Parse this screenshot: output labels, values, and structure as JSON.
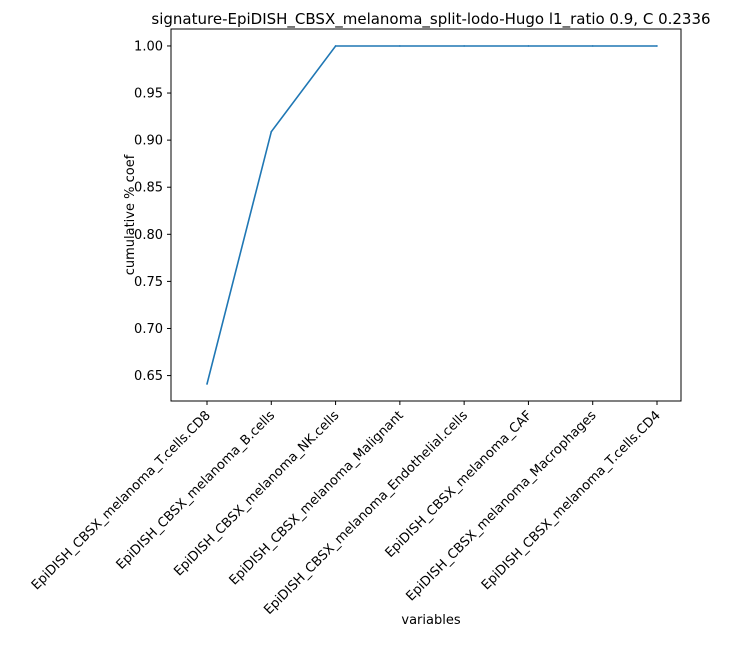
{
  "chart_data": {
    "type": "line",
    "title": "signature-EpiDISH_CBSX_melanoma_split-lodo-Hugo l1_ratio 0.9, C 0.2336",
    "xlabel": "variables",
    "ylabel": "cumulative % coef",
    "categories": [
      "EpiDISH_CBSX_melanoma_T.cells.CD8",
      "EpiDISH_CBSX_melanoma_B.cells",
      "EpiDISH_CBSX_melanoma_NK.cells",
      "EpiDISH_CBSX_melanoma_Malignant",
      "EpiDISH_CBSX_melanoma_Endothelial.cells",
      "EpiDISH_CBSX_melanoma_CAF",
      "EpiDISH_CBSX_melanoma_Macrophages",
      "EpiDISH_CBSX_melanoma_T.cells.CD4"
    ],
    "series": [
      {
        "values": [
          0.641,
          0.909,
          1.0,
          1.0,
          1.0,
          1.0,
          1.0,
          1.0
        ]
      }
    ],
    "yticks": [
      "0.65",
      "0.70",
      "0.75",
      "0.80",
      "0.85",
      "0.90",
      "0.95",
      "1.00"
    ],
    "ylim": [
      0.623,
      1.018
    ],
    "grid": false,
    "colors": {
      "line": "#1f77b4",
      "axes": "#000000"
    }
  }
}
